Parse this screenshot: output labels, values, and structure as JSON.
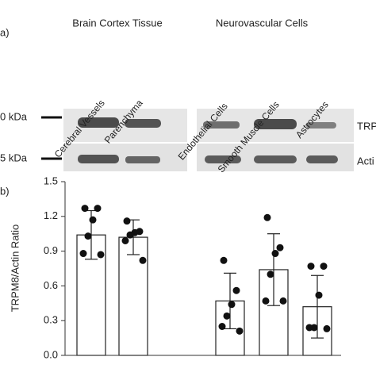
{
  "blot": {
    "panel_label": "a)",
    "groups": [
      {
        "title": "Brain Cortex Tissue",
        "lanes": [
          "Cerebral Vessels",
          "Parenchyma"
        ]
      },
      {
        "title": "Neurovascular Cells",
        "lanes": [
          "Endothelial Cells",
          "Smooth Muscle Cells",
          "Astrocytes"
        ]
      }
    ],
    "markers": [
      "0 kDa",
      "5 kDa"
    ],
    "bands": [
      "TRP",
      "Acti"
    ]
  },
  "chart_data": {
    "type": "bar",
    "panel_label": "b)",
    "ylabel": "TRPM8/Actin Ratio",
    "categories": [
      null,
      null,
      null,
      null,
      null
    ],
    "values": [
      1.04,
      1.02,
      0.47,
      0.74,
      0.42
    ],
    "errors": [
      0.21,
      0.15,
      0.24,
      0.31,
      0.27
    ],
    "points": [
      [
        1.27,
        1.27,
        1.17,
        1.03,
        0.88,
        0.87
      ],
      [
        1.16,
        1.07,
        1.06,
        1.04,
        0.99,
        0.82
      ],
      [
        0.82,
        0.56,
        0.44,
        0.34,
        0.25,
        0.21
      ],
      [
        1.19,
        0.93,
        0.88,
        0.7,
        0.47,
        0.47
      ],
      [
        0.77,
        0.77,
        0.52,
        0.24,
        0.24,
        0.23
      ]
    ],
    "color": "#ffffff",
    "ylim": [
      0,
      1.5
    ],
    "yticks": [
      {
        "value": 0,
        "label": "0.0"
      },
      0.3,
      0.6,
      0.9,
      1.2,
      1.5
    ]
  }
}
